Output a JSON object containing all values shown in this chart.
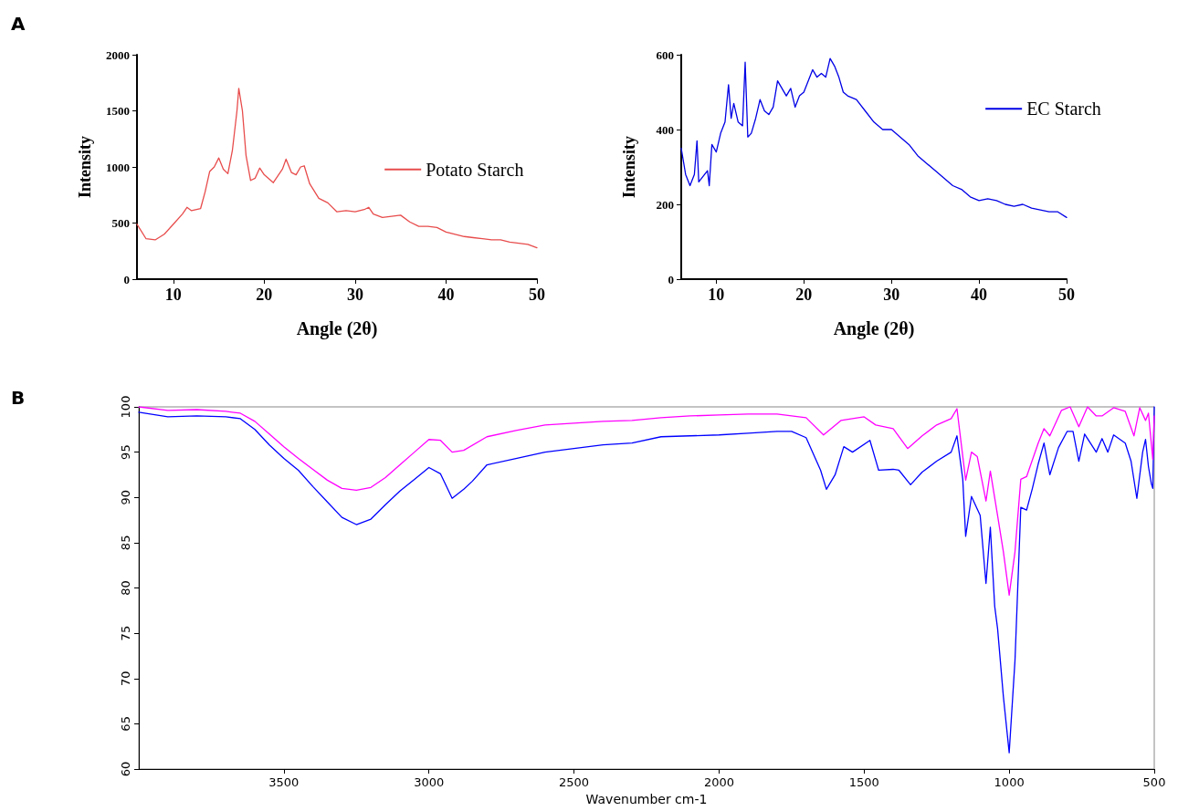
{
  "chart_data": [
    {
      "type": "line",
      "xlabel": "Angle (2θ)",
      "ylabel": "Intensity",
      "annotations": [
        "A"
      ],
      "xlim": [
        6,
        50
      ],
      "xticks": [
        10,
        20,
        30,
        40,
        50
      ],
      "ylim": [
        0,
        2000
      ],
      "yticks": [
        0,
        500,
        1000,
        1500,
        2000
      ],
      "legend": "right",
      "marker": "none",
      "series": [
        {
          "name": "Potato Starch",
          "color": "#e84c4c",
          "x": [
            6,
            7,
            8,
            9,
            10,
            11,
            11.5,
            12,
            13,
            13.5,
            14,
            14.5,
            15,
            15.5,
            16,
            16.5,
            17,
            17.2,
            17.6,
            18,
            18.5,
            19,
            19.5,
            20,
            21,
            22,
            22.4,
            23,
            23.5,
            24,
            24.4,
            25,
            26,
            27,
            28,
            29,
            30,
            31,
            31.5,
            32,
            33,
            34,
            35,
            36,
            37,
            38,
            39,
            40,
            41,
            42,
            43,
            44,
            45,
            46,
            47,
            48,
            49,
            50
          ],
          "values": [
            490,
            360,
            350,
            400,
            490,
            580,
            640,
            610,
            630,
            780,
            960,
            1000,
            1080,
            980,
            940,
            1150,
            1500,
            1700,
            1500,
            1100,
            880,
            900,
            990,
            930,
            860,
            980,
            1070,
            950,
            930,
            1000,
            1010,
            850,
            720,
            680,
            600,
            610,
            600,
            620,
            640,
            580,
            550,
            560,
            570,
            510,
            470,
            470,
            460,
            420,
            400,
            380,
            370,
            360,
            350,
            350,
            330,
            320,
            310,
            280
          ]
        }
      ]
    },
    {
      "type": "line",
      "xlabel": "Angle (2θ)",
      "ylabel": "Intensity",
      "xlim": [
        6,
        50
      ],
      "xticks": [
        10,
        20,
        30,
        40,
        50
      ],
      "ylim": [
        0,
        600
      ],
      "yticks": [
        0,
        200,
        400,
        600
      ],
      "legend": "top right",
      "marker": "none",
      "series": [
        {
          "name": "EC Starch",
          "color": "#0000e6",
          "x": [
            6,
            6.5,
            7,
            7.5,
            7.8,
            8,
            9,
            9.2,
            9.5,
            10,
            10.5,
            11,
            11.4,
            11.7,
            12,
            12.5,
            13,
            13.3,
            13.6,
            14,
            14.5,
            15,
            15.5,
            16,
            16.5,
            17,
            17.5,
            18,
            18.5,
            19,
            19.5,
            20,
            20.5,
            21,
            21.5,
            22,
            22.5,
            23,
            23.5,
            24,
            24.5,
            25,
            26,
            27,
            28,
            29,
            30,
            31,
            32,
            33,
            34,
            35,
            36,
            37,
            38,
            39,
            40,
            41,
            42,
            43,
            44,
            45,
            46,
            47,
            48,
            49,
            50
          ],
          "values": [
            350,
            280,
            250,
            280,
            370,
            260,
            290,
            250,
            360,
            340,
            390,
            420,
            520,
            430,
            470,
            420,
            410,
            580,
            380,
            390,
            430,
            480,
            450,
            440,
            460,
            530,
            510,
            490,
            510,
            460,
            490,
            500,
            530,
            560,
            540,
            550,
            540,
            590,
            570,
            540,
            500,
            490,
            480,
            450,
            420,
            400,
            400,
            380,
            360,
            330,
            310,
            290,
            270,
            250,
            240,
            220,
            210,
            215,
            210,
            200,
            195,
            200,
            190,
            185,
            180,
            180,
            165
          ]
        }
      ]
    },
    {
      "type": "line",
      "xlabel": "Wavenumber cm-1",
      "annotations": [
        "B"
      ],
      "xlim": [
        4000,
        500
      ],
      "xticks": [
        3500,
        3000,
        2500,
        2000,
        1500,
        1000,
        500
      ],
      "ylim": [
        60,
        100
      ],
      "yticks": [
        60,
        65,
        70,
        75,
        80,
        85,
        90,
        95,
        100
      ],
      "marker": "none",
      "series": [
        {
          "color": "#0000ff",
          "x": [
            4000,
            3900,
            3800,
            3700,
            3650,
            3600,
            3550,
            3500,
            3450,
            3400,
            3350,
            3300,
            3250,
            3200,
            3150,
            3100,
            3050,
            3000,
            2960,
            2920,
            2880,
            2850,
            2800,
            2700,
            2600,
            2500,
            2400,
            2300,
            2200,
            2100,
            2000,
            1900,
            1800,
            1750,
            1700,
            1650,
            1630,
            1600,
            1570,
            1540,
            1480,
            1450,
            1400,
            1380,
            1340,
            1300,
            1250,
            1200,
            1180,
            1160,
            1150,
            1130,
            1100,
            1080,
            1065,
            1050,
            1040,
            1020,
            1000,
            980,
            960,
            940,
            920,
            900,
            880,
            860,
            830,
            800,
            780,
            760,
            740,
            700,
            680,
            660,
            640,
            600,
            580,
            560,
            540,
            530,
            520,
            510,
            505,
            500
          ],
          "values": [
            99.4,
            98.9,
            99.0,
            98.9,
            98.7,
            97.5,
            95.8,
            94.3,
            93.0,
            91.2,
            89.5,
            87.8,
            87.0,
            87.6,
            89.2,
            90.7,
            92.0,
            93.3,
            92.6,
            89.9,
            90.9,
            91.8,
            93.6,
            94.3,
            95.0,
            95.4,
            95.8,
            96.0,
            96.7,
            96.8,
            96.9,
            97.1,
            97.3,
            97.3,
            96.6,
            93.0,
            90.9,
            92.5,
            95.6,
            95.0,
            96.3,
            93.0,
            93.1,
            93.0,
            91.4,
            92.8,
            94.0,
            95.0,
            96.8,
            92.0,
            85.7,
            90.1,
            88.0,
            80.5,
            86.7,
            78.0,
            75.5,
            68,
            61.8,
            72,
            88.9,
            88.6,
            91,
            93.7,
            96.0,
            92.5,
            95.5,
            97.3,
            97.3,
            94,
            97.0,
            95.0,
            96.5,
            95,
            96.9,
            96.0,
            94,
            89.9,
            95,
            96.4,
            93.4,
            91.5,
            91,
            100
          ]
        },
        {
          "color": "#ff00ff",
          "x": [
            4000,
            3900,
            3800,
            3700,
            3650,
            3600,
            3550,
            3500,
            3450,
            3400,
            3350,
            3300,
            3250,
            3200,
            3150,
            3100,
            3050,
            3000,
            2960,
            2920,
            2880,
            2800,
            2700,
            2600,
            2500,
            2400,
            2300,
            2200,
            2100,
            2000,
            1900,
            1800,
            1700,
            1640,
            1580,
            1500,
            1460,
            1400,
            1350,
            1300,
            1250,
            1200,
            1180,
            1150,
            1130,
            1110,
            1080,
            1065,
            1040,
            1020,
            1000,
            980,
            960,
            940,
            900,
            880,
            860,
            820,
            790,
            760,
            730,
            700,
            680,
            640,
            600,
            570,
            550,
            530,
            520,
            505,
            500
          ],
          "values": [
            100,
            99.6,
            99.7,
            99.5,
            99.3,
            98.4,
            97.0,
            95.6,
            94.3,
            93.1,
            91.9,
            91.0,
            90.8,
            91.1,
            92.2,
            93.6,
            95.0,
            96.4,
            96.3,
            95.0,
            95.2,
            96.7,
            97.4,
            98.0,
            98.2,
            98.4,
            98.5,
            98.8,
            99.0,
            99.1,
            99.2,
            99.2,
            98.8,
            96.9,
            98.5,
            98.9,
            98.0,
            97.6,
            95.4,
            96.8,
            98.0,
            98.7,
            99.8,
            91.9,
            95.0,
            94.5,
            89.6,
            92.9,
            88,
            84,
            79.2,
            84,
            92.0,
            92.3,
            96,
            97.6,
            96.8,
            99.6,
            100,
            97.8,
            100,
            99.0,
            99.0,
            99.9,
            99.5,
            96.8,
            99.9,
            98.5,
            99.3,
            94.2,
            99
          ]
        }
      ]
    }
  ]
}
